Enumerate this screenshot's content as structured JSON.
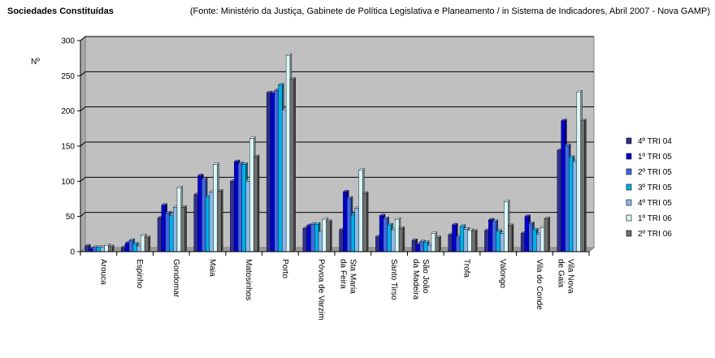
{
  "header": {
    "title": "Sociedades Constituídas",
    "source": "(Fonte: Ministério da Justiça, Gabinete de Política Legislativa e Planeamento / in Sistema de Indicadores, Abril 2007 - Nova GAMP)"
  },
  "chart_data": {
    "type": "bar",
    "title": "Sociedades Constituídas",
    "xlabel": "",
    "ylabel": "Nº",
    "ylim": [
      0,
      300
    ],
    "yticks": [
      0,
      50,
      100,
      150,
      200,
      250,
      300
    ],
    "grid": true,
    "legend_position": "right",
    "plot_background": "#c0c0c0",
    "categories": [
      "Arouca",
      "Espinho",
      "Gondomar",
      "Maia",
      "Matosinhos",
      "Porto",
      "Póvoa de Varzim",
      "Sta Maria da Feira",
      "Santo Tirso",
      "São João da Madeira",
      "Trofa",
      "Valongo",
      "Vila do Conde",
      "Vila Nova de Gaia"
    ],
    "series": [
      {
        "name": "4º TRI 04",
        "color": "#2f2f8f",
        "values": [
          8,
          6,
          48,
          81,
          100,
          226,
          33,
          31,
          21,
          16,
          24,
          30,
          26,
          144
        ]
      },
      {
        "name": "1º TRI 05",
        "color": "#0000d0",
        "values": [
          4,
          12,
          66,
          108,
          128,
          225,
          37,
          85,
          51,
          10,
          38,
          45,
          50,
          186
        ]
      },
      {
        "name": "2º TRI 05",
        "color": "#4169e1",
        "values": [
          6,
          16,
          55,
          103,
          125,
          229,
          39,
          76,
          47,
          14,
          21,
          43,
          40,
          151
        ]
      },
      {
        "name": "3º TRI 05",
        "color": "#00b0e8",
        "values": [
          6,
          11,
          51,
          78,
          124,
          237,
          39,
          52,
          38,
          13,
          36,
          29,
          31,
          134
        ]
      },
      {
        "name": "4º TRI 05",
        "color": "#8fb8e8",
        "values": [
          6,
          8,
          63,
          85,
          100,
          201,
          28,
          62,
          31,
          9,
          32,
          26,
          25,
          128
        ]
      },
      {
        "name": "1º TRI 06",
        "color": "#d8f8f8",
        "values": [
          9,
          23,
          91,
          124,
          161,
          279,
          46,
          116,
          46,
          26,
          30,
          71,
          34,
          227
        ]
      },
      {
        "name": "2º TRI 06",
        "color": "#707070",
        "values": [
          7,
          20,
          63,
          86,
          135,
          245,
          43,
          83,
          33,
          20,
          29,
          37,
          47,
          186
        ]
      }
    ]
  }
}
